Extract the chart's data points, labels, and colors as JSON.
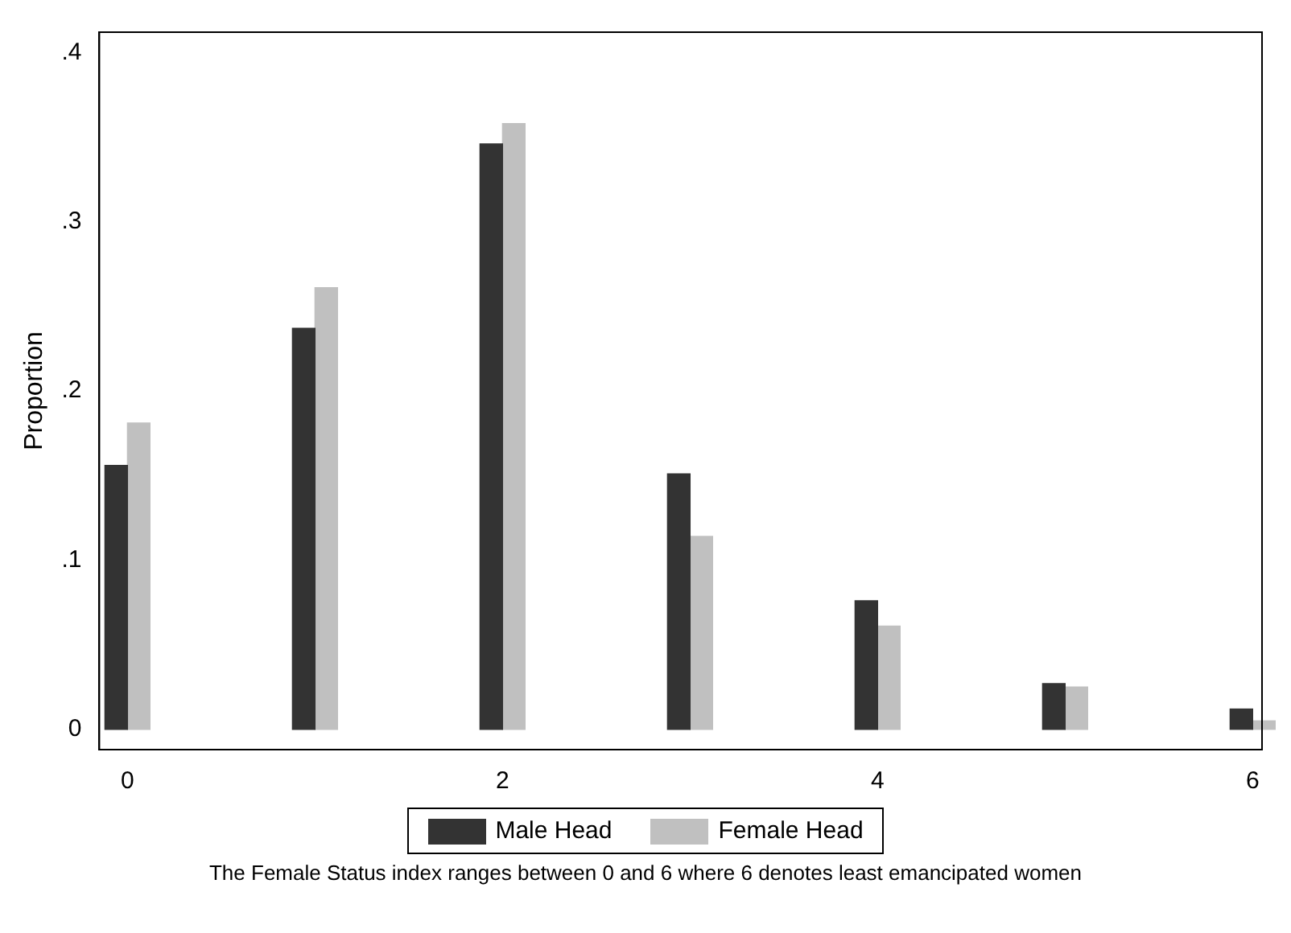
{
  "chart_data": {
    "type": "bar",
    "ylabel": "Proportion",
    "x": [
      0,
      1,
      2,
      3,
      4,
      5,
      6
    ],
    "series": [
      {
        "name": "Male Head",
        "color": "#333333",
        "values": [
          0.156,
          0.237,
          0.346,
          0.151,
          0.076,
          0.027,
          0.012
        ]
      },
      {
        "name": "Female Head",
        "color": "#c0c0c0",
        "values": [
          0.181,
          0.261,
          0.358,
          0.114,
          0.061,
          0.025,
          0.005
        ]
      }
    ],
    "xlim": [
      -0.15,
      6.05
    ],
    "xticks": [
      0,
      2,
      4,
      6
    ],
    "ylim": [
      -0.012,
      0.412
    ],
    "yticks": [
      0,
      {
        "value": 0.1,
        "label": ".1"
      },
      {
        "value": 0.2,
        "label": ".2"
      },
      {
        "value": 0.3,
        "label": ".3"
      },
      {
        "value": 0.4,
        "label": ".4"
      }
    ],
    "grid": false,
    "legend": "bottom",
    "annotations": [
      "The Female Status index ranges between 0 and 6 where 6 denotes least emancipated women"
    ]
  }
}
